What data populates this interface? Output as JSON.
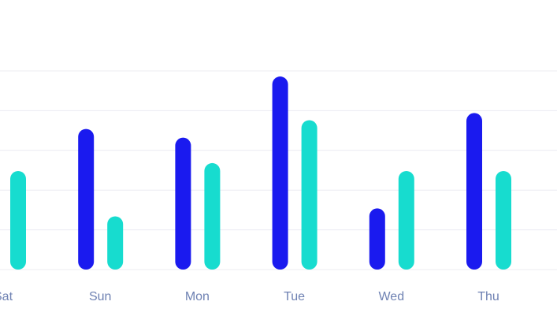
{
  "chart_data": {
    "type": "bar",
    "categories": [
      "Sat",
      "Sun",
      "Mon",
      "Tue",
      "Wed",
      "Thu"
    ],
    "series": [
      {
        "color": "#1a1aef",
        "values": [
          null,
          177,
          166,
          243,
          77,
          197
        ]
      },
      {
        "color": "#17dccf",
        "values": [
          124,
          67,
          134,
          188,
          124,
          124
        ]
      }
    ],
    "ylim": [
      0,
      250
    ],
    "yticks": [
      0,
      50,
      100,
      150,
      200,
      250
    ],
    "grid": true
  }
}
